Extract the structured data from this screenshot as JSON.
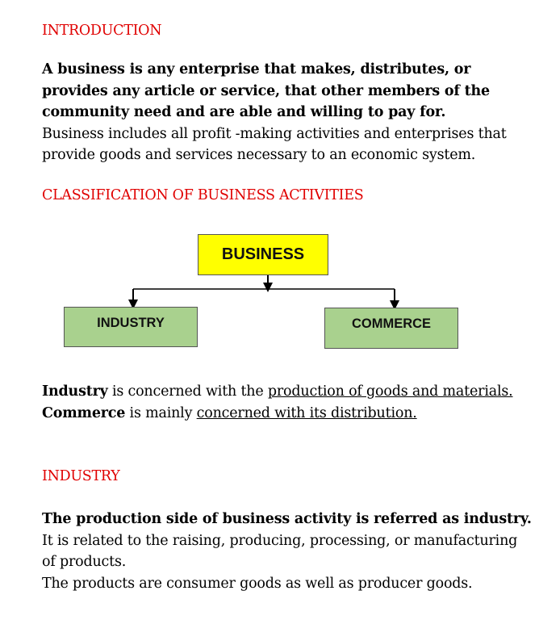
{
  "sections": {
    "introduction": {
      "heading": "INTRODUCTION",
      "definition_bold": "A business is any enterprise that makes, distributes, or provides any article or service, that other members of the community need and are able and willing to pay for.",
      "definition_plain": "Business includes all profit -making activities and enterprises that provide goods and services necessary to an economic system."
    },
    "classification": {
      "heading": "CLASSIFICATION OF BUSINESS ACTIVITIES",
      "diagram": {
        "root": "BUSINESS",
        "left_child": "INDUSTRY",
        "right_child": "COMMERCE",
        "root_color": "#ffff00",
        "child_color": "#a9d18e"
      },
      "industry_term": "Industry",
      "industry_text": " is concerned with the ",
      "industry_underlined": "production of goods and materials.",
      "commerce_term": "Commerce",
      "commerce_text": " is mainly ",
      "commerce_underlined": "concerned with its distribution."
    },
    "industry": {
      "heading": "INDUSTRY",
      "definition_bold": "The production side of business activity is referred as industry.",
      "line1": "It is related to the raising, producing, processing, or manufacturing of products.",
      "line2": "The products are consumer goods as well as producer goods."
    }
  },
  "colors": {
    "heading": "#e00000"
  }
}
